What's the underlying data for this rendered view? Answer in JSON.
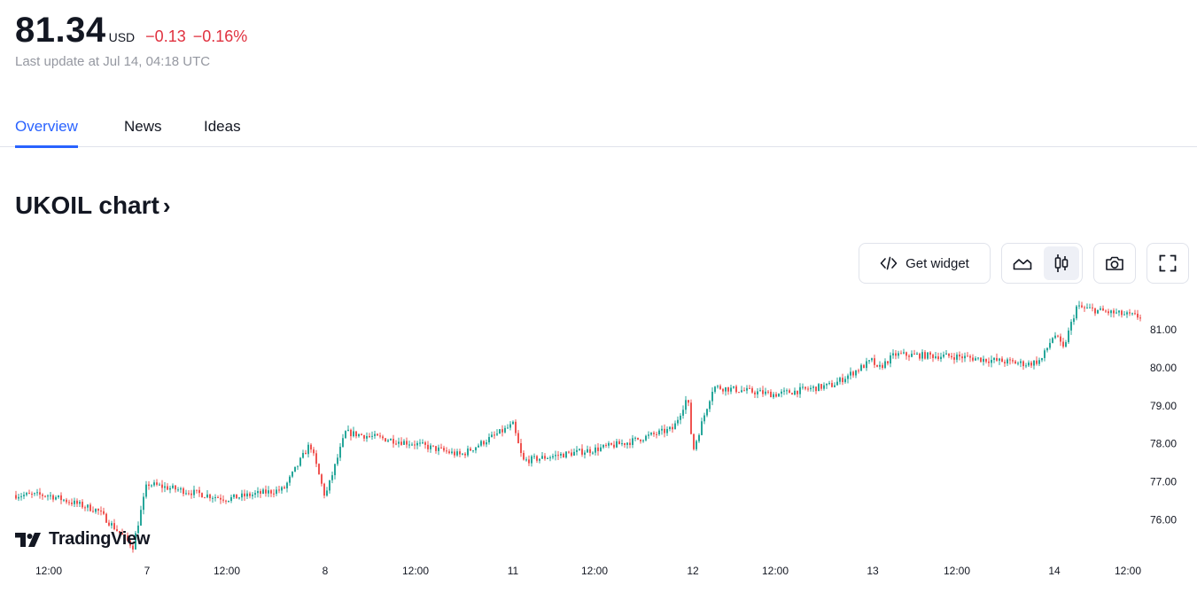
{
  "quote": {
    "price": "81.34",
    "currency": "USD",
    "change": "−0.13",
    "change_pct": "−0.16%",
    "last_update": "Last update at Jul 14, 04:18 UTC",
    "down_color": "#e0313f"
  },
  "tabs": [
    {
      "label": "Overview",
      "active": true
    },
    {
      "label": "News",
      "active": false
    },
    {
      "label": "Ideas",
      "active": false
    }
  ],
  "chart_section": {
    "title": "UKOIL chart",
    "toolbar": {
      "get_widget_label": "Get widget",
      "icons": [
        "code-icon",
        "area-chart-icon",
        "candles-icon",
        "camera-icon",
        "fullscreen-icon"
      ],
      "active_style": "candles"
    }
  },
  "chart_data": {
    "type": "candlestick",
    "symbol": "UKOIL",
    "up_color": "#26a69a",
    "down_color": "#ef5350",
    "ylim": [
      75.1,
      81.75
    ],
    "y_ticks": [
      "81.00",
      "80.00",
      "79.00",
      "78.00",
      "77.00",
      "76.00"
    ],
    "x_ticks": [
      "12:00",
      "7",
      "12:00",
      "8",
      "12:00",
      "11",
      "12:00",
      "12",
      "12:00",
      "13",
      "12:00",
      "14",
      "12:00"
    ],
    "close_path": [
      [
        "12:00 Jul 6",
        76.65
      ],
      [
        "18:00 Jul 6",
        76.25
      ],
      [
        "00:00 Jul 7",
        76.95
      ],
      [
        "06:00 Jul 7",
        75.3
      ],
      [
        "12:00 Jul 7",
        76.55
      ],
      [
        "18:00 Jul 7",
        76.8
      ],
      [
        "00:00 Jul 8",
        76.6
      ],
      [
        "04:00 Jul 8",
        78.0
      ],
      [
        "06:00 Jul 8",
        78.3
      ],
      [
        "12:00 Jul 8",
        78.0
      ],
      [
        "18:00 Jul 8",
        77.7
      ],
      [
        "00:00 Jul 11",
        78.5
      ],
      [
        "04:00 Jul 11",
        77.55
      ],
      [
        "12:00 Jul 11",
        77.85
      ],
      [
        "18:00 Jul 11",
        78.05
      ],
      [
        "00:00 Jul 12",
        77.8
      ],
      [
        "04:00 Jul 12",
        78.4
      ],
      [
        "06:00 Jul 12",
        79.25
      ],
      [
        "12:00 Jul 12",
        79.5
      ],
      [
        "18:00 Jul 12",
        79.3
      ],
      [
        "00:00 Jul 13",
        79.55
      ],
      [
        "04:00 Jul 13",
        80.2
      ],
      [
        "06:00 Jul 13",
        79.95
      ],
      [
        "12:00 Jul 13",
        80.35
      ],
      [
        "18:00 Jul 13",
        80.3
      ],
      [
        "23:00 Jul 13",
        80.1
      ],
      [
        "00:00 Jul 14",
        80.9
      ],
      [
        "02:00 Jul 14",
        80.2
      ],
      [
        "04:00 Jul 14",
        80.5
      ],
      [
        "06:00 Jul 14",
        81.6
      ],
      [
        "12:00 Jul 14",
        81.45
      ],
      [
        "16:00 Jul 14",
        81.34
      ]
    ],
    "grid": false,
    "legend": "none"
  },
  "branding": {
    "logo_text": "TradingView"
  }
}
